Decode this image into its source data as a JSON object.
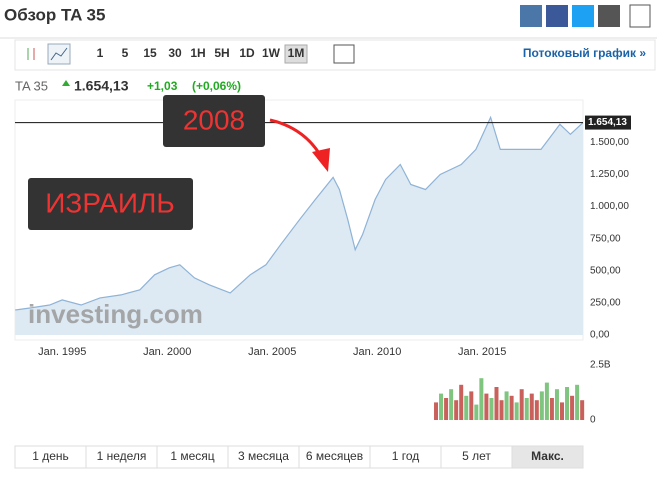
{
  "header": {
    "title": "Обзор TA 35"
  },
  "toolbar": {
    "intervals": [
      "1",
      "5",
      "15",
      "30",
      "1H",
      "5H",
      "1D",
      "1W",
      "1M"
    ],
    "active": "1M",
    "link": "Потоковый график »"
  },
  "quote": {
    "symbol": "TA 35",
    "change": "+1,03",
    "change_percent": "(+0,06%)"
  },
  "chart_data": [
    {
      "type": "area",
      "color": "#8fb3d6",
      "fill": "#dde9f3",
      "x": [
        1992.76,
        1993.5,
        1994.4,
        1995,
        1995.9,
        1996.8,
        1997.8,
        1998.7,
        1999.4,
        2000.1,
        2000.6,
        2001.3,
        2002.0,
        2003.0,
        2003.95,
        2004.7,
        2005.4,
        2006.3,
        2007.05,
        2007.9,
        2008.2,
        2008.6,
        2008.95,
        2009.3,
        2009.9,
        2010.4,
        2011.1,
        2011.6,
        2012.3,
        2013.0,
        2014.0,
        2014.7,
        2015.4,
        2015.86,
        2016.8,
        2017.8,
        2018.7,
        2019.2,
        2019.8
      ],
      "values": [
        195,
        211,
        234,
        273,
        234,
        289,
        312,
        352,
        469,
        523,
        547,
        445,
        391,
        328,
        469,
        547,
        703,
        898,
        1055,
        1227,
        1133,
        898,
        664,
        781,
        1055,
        1211,
        1328,
        1172,
        1133,
        1250,
        1328,
        1445,
        1695,
        1445,
        1445,
        1445,
        1641,
        1563,
        1654.13
      ],
      "current_price": {
        "value": 1654.13,
        "label": "1.654,13"
      },
      "xlim": [
        1992.75,
        2019.8
      ],
      "xticks": [
        {
          "value": 1995,
          "label": "Jan, 1995"
        },
        {
          "value": 2000,
          "label": "Jan, 2000"
        },
        {
          "value": 2005,
          "label": "Jan, 2005"
        },
        {
          "value": 2010,
          "label": "Jan, 2010"
        },
        {
          "value": 2015,
          "label": "Jan, 2015"
        }
      ],
      "ylim": [
        0,
        1830
      ],
      "yticks": [
        {
          "value": 0,
          "label": "0,00"
        },
        {
          "value": 250,
          "label": "250,00"
        },
        {
          "value": 500,
          "label": "500,00"
        },
        {
          "value": 750,
          "label": "750,00"
        },
        {
          "value": 1000,
          "label": "1.000,00"
        },
        {
          "value": 1250,
          "label": "1.250,00"
        },
        {
          "value": 1500,
          "label": "1.500,00"
        }
      ],
      "watermark": "investing.com",
      "annotations": [
        "2008",
        "ИЗРАИЛЬ"
      ]
    },
    {
      "type": "bar",
      "x": [
        2012.8,
        2013.04,
        2013.28,
        2013.52,
        2013.76,
        2014.0,
        2014.24,
        2014.48,
        2014.72,
        2014.96,
        2015.2,
        2015.44,
        2015.68,
        2015.92,
        2016.16,
        2016.4,
        2016.64,
        2016.88,
        2017.12,
        2017.36,
        2017.6,
        2017.84,
        2018.08,
        2018.32,
        2018.56,
        2018.8,
        2019.04,
        2019.28,
        2019.52,
        2019.76
      ],
      "values": [
        800000000,
        1200000000,
        1000000000,
        1400000000,
        900000000,
        1600000000,
        1100000000,
        1300000000,
        700000000,
        1900000000,
        1200000000,
        1000000000,
        1500000000,
        900000000,
        1300000000,
        1100000000,
        800000000,
        1400000000,
        1000000000,
        1200000000,
        900000000,
        1300000000,
        1700000000,
        1000000000,
        1400000000,
        800000000,
        1500000000,
        1100000000,
        1600000000,
        900000000
      ],
      "colors": [
        "#c9605c",
        "#7fc47f",
        "#c9605c",
        "#7fc47f",
        "#c9605c",
        "#c9605c",
        "#7fc47f",
        "#c9605c",
        "#7fc47f",
        "#7fc47f",
        "#c9605c",
        "#7fc47f",
        "#c9605c",
        "#c9605c",
        "#7fc47f",
        "#c9605c",
        "#7fc47f",
        "#c9605c",
        "#7fc47f",
        "#c9605c",
        "#c9605c",
        "#7fc47f",
        "#7fc47f",
        "#c9605c",
        "#7fc47f",
        "#c9605c",
        "#7fc47f",
        "#c9605c",
        "#7fc47f",
        "#c9605c"
      ],
      "xlim": [
        1992.75,
        2019.8
      ],
      "ylim": [
        0,
        2500000000
      ],
      "yticks": [
        0,
        {
          "value": 2500000000,
          "label": "2.5B"
        }
      ]
    }
  ],
  "ranges": {
    "buttons": [
      "1 день",
      "1 неделя",
      "1 месяц",
      "3 месяца",
      "6 месяцев",
      "1 год",
      "5 лет",
      "Макс."
    ],
    "active": "Макс."
  }
}
